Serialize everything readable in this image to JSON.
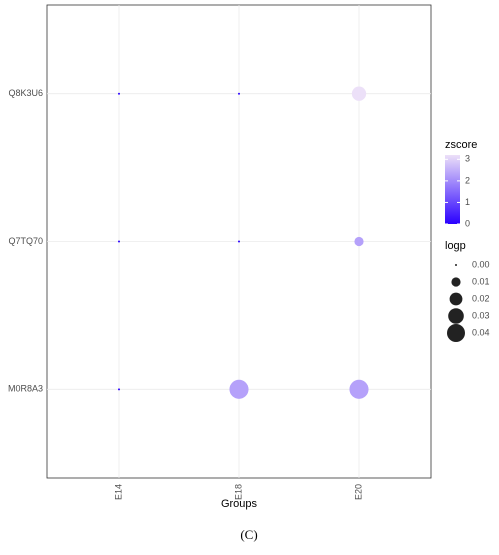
{
  "chart_data": {
    "type": "dot",
    "x_label": "Groups",
    "caption": "(C)",
    "categories": [
      "E14",
      "E18",
      "E20"
    ],
    "y_categories": [
      "M0R8A3",
      "Q7TQ70",
      "Q8K3U6"
    ],
    "zscore": [
      [
        0,
        2.3,
        2.3
      ],
      [
        0,
        0,
        2.3
      ],
      [
        0,
        0,
        3.2
      ]
    ],
    "logp": [
      [
        0,
        0.045,
        0.045
      ],
      [
        0,
        0,
        0.01
      ],
      [
        0,
        0,
        0.025
      ]
    ],
    "color_title": "zscore",
    "zlim": [
      0,
      3.2
    ],
    "zticks": [
      0,
      1,
      2,
      3
    ],
    "colors": {
      "low": "#2a00ff",
      "high": "#ece0f8"
    },
    "size_title": "logp",
    "sizeticks": [
      {
        "value": 0,
        "label": "0.00"
      },
      {
        "value": 0.01,
        "label": "0.01"
      },
      {
        "value": 0.02,
        "label": "0.02"
      },
      {
        "value": 0.03,
        "label": "0.03"
      },
      {
        "value": 0.04,
        "label": "0.04"
      }
    ],
    "grid": true
  }
}
